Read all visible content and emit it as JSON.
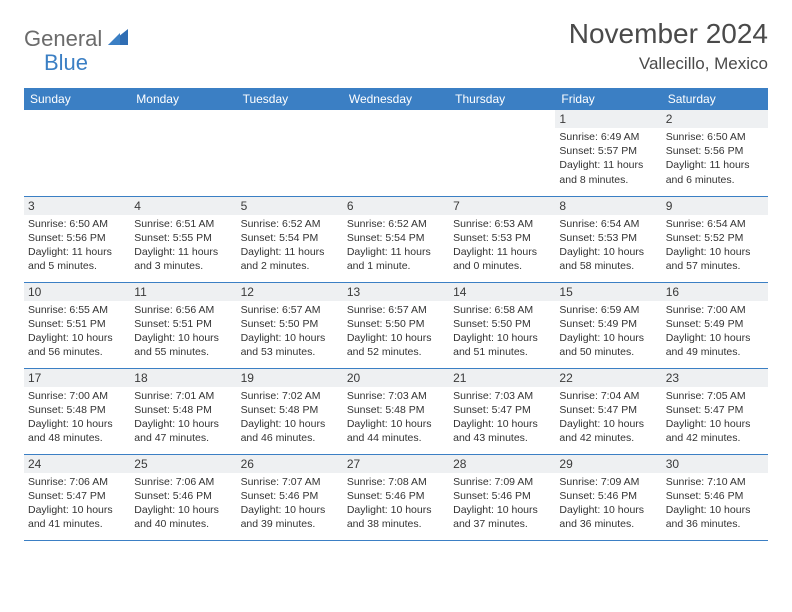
{
  "logo": {
    "part1": "General",
    "part2": "Blue"
  },
  "title": "November 2024",
  "location": "Vallecillo, Mexico",
  "colors": {
    "header_bg": "#3b7fc4",
    "header_text": "#ffffff",
    "daynum_bg": "#eef0f2",
    "border": "#3b7fc4",
    "logo_gray": "#6b6b6b",
    "logo_blue": "#3b7fc4"
  },
  "fonts": {
    "title_pt": 28,
    "location_pt": 17,
    "dayhead_pt": 12,
    "body_pt": 10.5
  },
  "dayheads": [
    "Sunday",
    "Monday",
    "Tuesday",
    "Wednesday",
    "Thursday",
    "Friday",
    "Saturday"
  ],
  "weeks": [
    [
      {
        "n": "",
        "sr": "",
        "ss": "",
        "d1": "",
        "d2": ""
      },
      {
        "n": "",
        "sr": "",
        "ss": "",
        "d1": "",
        "d2": ""
      },
      {
        "n": "",
        "sr": "",
        "ss": "",
        "d1": "",
        "d2": ""
      },
      {
        "n": "",
        "sr": "",
        "ss": "",
        "d1": "",
        "d2": ""
      },
      {
        "n": "",
        "sr": "",
        "ss": "",
        "d1": "",
        "d2": ""
      },
      {
        "n": "1",
        "sr": "Sunrise: 6:49 AM",
        "ss": "Sunset: 5:57 PM",
        "d1": "Daylight: 11 hours",
        "d2": "and 8 minutes."
      },
      {
        "n": "2",
        "sr": "Sunrise: 6:50 AM",
        "ss": "Sunset: 5:56 PM",
        "d1": "Daylight: 11 hours",
        "d2": "and 6 minutes."
      }
    ],
    [
      {
        "n": "3",
        "sr": "Sunrise: 6:50 AM",
        "ss": "Sunset: 5:56 PM",
        "d1": "Daylight: 11 hours",
        "d2": "and 5 minutes."
      },
      {
        "n": "4",
        "sr": "Sunrise: 6:51 AM",
        "ss": "Sunset: 5:55 PM",
        "d1": "Daylight: 11 hours",
        "d2": "and 3 minutes."
      },
      {
        "n": "5",
        "sr": "Sunrise: 6:52 AM",
        "ss": "Sunset: 5:54 PM",
        "d1": "Daylight: 11 hours",
        "d2": "and 2 minutes."
      },
      {
        "n": "6",
        "sr": "Sunrise: 6:52 AM",
        "ss": "Sunset: 5:54 PM",
        "d1": "Daylight: 11 hours",
        "d2": "and 1 minute."
      },
      {
        "n": "7",
        "sr": "Sunrise: 6:53 AM",
        "ss": "Sunset: 5:53 PM",
        "d1": "Daylight: 11 hours",
        "d2": "and 0 minutes."
      },
      {
        "n": "8",
        "sr": "Sunrise: 6:54 AM",
        "ss": "Sunset: 5:53 PM",
        "d1": "Daylight: 10 hours",
        "d2": "and 58 minutes."
      },
      {
        "n": "9",
        "sr": "Sunrise: 6:54 AM",
        "ss": "Sunset: 5:52 PM",
        "d1": "Daylight: 10 hours",
        "d2": "and 57 minutes."
      }
    ],
    [
      {
        "n": "10",
        "sr": "Sunrise: 6:55 AM",
        "ss": "Sunset: 5:51 PM",
        "d1": "Daylight: 10 hours",
        "d2": "and 56 minutes."
      },
      {
        "n": "11",
        "sr": "Sunrise: 6:56 AM",
        "ss": "Sunset: 5:51 PM",
        "d1": "Daylight: 10 hours",
        "d2": "and 55 minutes."
      },
      {
        "n": "12",
        "sr": "Sunrise: 6:57 AM",
        "ss": "Sunset: 5:50 PM",
        "d1": "Daylight: 10 hours",
        "d2": "and 53 minutes."
      },
      {
        "n": "13",
        "sr": "Sunrise: 6:57 AM",
        "ss": "Sunset: 5:50 PM",
        "d1": "Daylight: 10 hours",
        "d2": "and 52 minutes."
      },
      {
        "n": "14",
        "sr": "Sunrise: 6:58 AM",
        "ss": "Sunset: 5:50 PM",
        "d1": "Daylight: 10 hours",
        "d2": "and 51 minutes."
      },
      {
        "n": "15",
        "sr": "Sunrise: 6:59 AM",
        "ss": "Sunset: 5:49 PM",
        "d1": "Daylight: 10 hours",
        "d2": "and 50 minutes."
      },
      {
        "n": "16",
        "sr": "Sunrise: 7:00 AM",
        "ss": "Sunset: 5:49 PM",
        "d1": "Daylight: 10 hours",
        "d2": "and 49 minutes."
      }
    ],
    [
      {
        "n": "17",
        "sr": "Sunrise: 7:00 AM",
        "ss": "Sunset: 5:48 PM",
        "d1": "Daylight: 10 hours",
        "d2": "and 48 minutes."
      },
      {
        "n": "18",
        "sr": "Sunrise: 7:01 AM",
        "ss": "Sunset: 5:48 PM",
        "d1": "Daylight: 10 hours",
        "d2": "and 47 minutes."
      },
      {
        "n": "19",
        "sr": "Sunrise: 7:02 AM",
        "ss": "Sunset: 5:48 PM",
        "d1": "Daylight: 10 hours",
        "d2": "and 46 minutes."
      },
      {
        "n": "20",
        "sr": "Sunrise: 7:03 AM",
        "ss": "Sunset: 5:48 PM",
        "d1": "Daylight: 10 hours",
        "d2": "and 44 minutes."
      },
      {
        "n": "21",
        "sr": "Sunrise: 7:03 AM",
        "ss": "Sunset: 5:47 PM",
        "d1": "Daylight: 10 hours",
        "d2": "and 43 minutes."
      },
      {
        "n": "22",
        "sr": "Sunrise: 7:04 AM",
        "ss": "Sunset: 5:47 PM",
        "d1": "Daylight: 10 hours",
        "d2": "and 42 minutes."
      },
      {
        "n": "23",
        "sr": "Sunrise: 7:05 AM",
        "ss": "Sunset: 5:47 PM",
        "d1": "Daylight: 10 hours",
        "d2": "and 42 minutes."
      }
    ],
    [
      {
        "n": "24",
        "sr": "Sunrise: 7:06 AM",
        "ss": "Sunset: 5:47 PM",
        "d1": "Daylight: 10 hours",
        "d2": "and 41 minutes."
      },
      {
        "n": "25",
        "sr": "Sunrise: 7:06 AM",
        "ss": "Sunset: 5:46 PM",
        "d1": "Daylight: 10 hours",
        "d2": "and 40 minutes."
      },
      {
        "n": "26",
        "sr": "Sunrise: 7:07 AM",
        "ss": "Sunset: 5:46 PM",
        "d1": "Daylight: 10 hours",
        "d2": "and 39 minutes."
      },
      {
        "n": "27",
        "sr": "Sunrise: 7:08 AM",
        "ss": "Sunset: 5:46 PM",
        "d1": "Daylight: 10 hours",
        "d2": "and 38 minutes."
      },
      {
        "n": "28",
        "sr": "Sunrise: 7:09 AM",
        "ss": "Sunset: 5:46 PM",
        "d1": "Daylight: 10 hours",
        "d2": "and 37 minutes."
      },
      {
        "n": "29",
        "sr": "Sunrise: 7:09 AM",
        "ss": "Sunset: 5:46 PM",
        "d1": "Daylight: 10 hours",
        "d2": "and 36 minutes."
      },
      {
        "n": "30",
        "sr": "Sunrise: 7:10 AM",
        "ss": "Sunset: 5:46 PM",
        "d1": "Daylight: 10 hours",
        "d2": "and 36 minutes."
      }
    ]
  ]
}
